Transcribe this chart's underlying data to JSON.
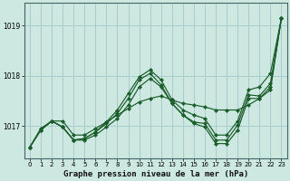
{
  "title": "Graphe pression niveau de la mer (hPa)",
  "background_color": "#cce8e0",
  "grid_color": "#aacccc",
  "line_color": "#1a5c2a",
  "marker_color": "#1a5c2a",
  "xlim": [
    -0.5,
    23.5
  ],
  "ylim": [
    1016.35,
    1019.45
  ],
  "yticks": [
    1017,
    1018,
    1019
  ],
  "xticks": [
    0,
    1,
    2,
    3,
    4,
    5,
    6,
    7,
    8,
    9,
    10,
    11,
    12,
    13,
    14,
    15,
    16,
    17,
    18,
    19,
    20,
    21,
    22,
    23
  ],
  "series": [
    [
      1016.58,
      1016.95,
      1017.1,
      1017.1,
      1016.82,
      1016.82,
      1016.95,
      1017.08,
      1017.22,
      1017.35,
      1017.48,
      1017.55,
      1017.6,
      1017.52,
      1017.45,
      1017.42,
      1017.38,
      1017.32,
      1017.32,
      1017.32,
      1017.42,
      1017.55,
      1017.78,
      1019.15
    ],
    [
      1016.58,
      1016.92,
      1017.1,
      1016.98,
      1016.72,
      1016.75,
      1016.88,
      1017.08,
      1017.32,
      1017.65,
      1017.98,
      1018.12,
      1017.92,
      1017.52,
      1017.32,
      1017.22,
      1017.15,
      1016.82,
      1016.82,
      1017.1,
      1017.72,
      1017.78,
      1018.05,
      1019.15
    ],
    [
      1016.58,
      1016.92,
      1017.1,
      1016.98,
      1016.72,
      1016.75,
      1016.88,
      1017.05,
      1017.25,
      1017.55,
      1017.92,
      1018.05,
      1017.82,
      1017.45,
      1017.22,
      1017.08,
      1017.05,
      1016.72,
      1016.72,
      1017.02,
      1017.62,
      1017.6,
      1017.85,
      1019.15
    ],
    [
      1016.58,
      1016.92,
      1017.1,
      1016.98,
      1016.72,
      1016.72,
      1016.82,
      1016.98,
      1017.15,
      1017.42,
      1017.78,
      1017.95,
      1017.78,
      1017.45,
      1017.22,
      1017.05,
      1016.98,
      1016.65,
      1016.65,
      1016.92,
      1017.55,
      1017.55,
      1017.72,
      1019.15
    ]
  ]
}
